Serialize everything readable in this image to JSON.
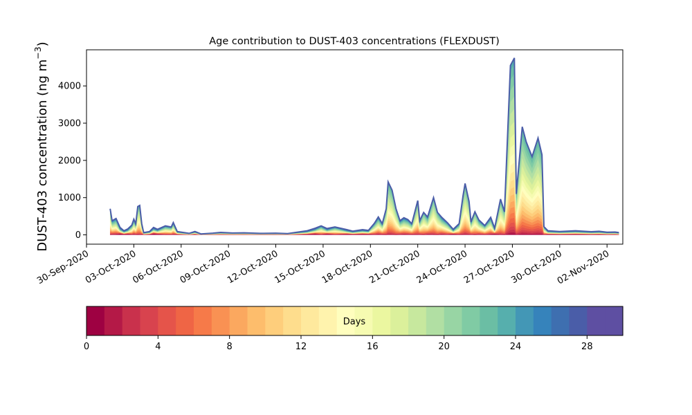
{
  "chart_data": {
    "type": "area",
    "stacked": true,
    "title": "Age contribution to DUST-403 concentrations (FLEXDUST)",
    "ylabel_main": "DUST-403 concentration (ng m",
    "ylabel_sup": "−3",
    "ylabel_close": ")",
    "xlabel": "",
    "yticks": [
      0,
      1000,
      2000,
      3000,
      4000
    ],
    "ylim": [
      -250,
      4970
    ],
    "xlim": [
      "2020-09-30T00:00",
      "2020-11-03T00:00"
    ],
    "xticks": [
      "30-Sep-2020",
      "03-Oct-2020",
      "06-Oct-2020",
      "09-Oct-2020",
      "12-Oct-2020",
      "15-Oct-2020",
      "18-Oct-2020",
      "21-Oct-2020",
      "24-Oct-2020",
      "27-Oct-2020",
      "30-Oct-2020",
      "02-Nov-2020"
    ],
    "grid": false,
    "total": [
      [
        "2020-10-01T12:00",
        700
      ],
      [
        "2020-10-01T15:00",
        380
      ],
      [
        "2020-10-01T21:00",
        440
      ],
      [
        "2020-10-02T03:00",
        200
      ],
      [
        "2020-10-02T09:00",
        110
      ],
      [
        "2020-10-02T15:00",
        160
      ],
      [
        "2020-10-02T21:00",
        260
      ],
      [
        "2020-10-03T00:00",
        420
      ],
      [
        "2020-10-03T03:00",
        300
      ],
      [
        "2020-10-03T06:00",
        760
      ],
      [
        "2020-10-03T09:00",
        790
      ],
      [
        "2020-10-03T12:00",
        300
      ],
      [
        "2020-10-03T15:00",
        60
      ],
      [
        "2020-10-04T00:00",
        90
      ],
      [
        "2020-10-04T06:00",
        200
      ],
      [
        "2020-10-04T12:00",
        150
      ],
      [
        "2020-10-05T00:00",
        240
      ],
      [
        "2020-10-05T09:00",
        210
      ],
      [
        "2020-10-05T12:00",
        330
      ],
      [
        "2020-10-05T18:00",
        90
      ],
      [
        "2020-10-06T12:00",
        40
      ],
      [
        "2020-10-06T21:00",
        90
      ],
      [
        "2020-10-07T06:00",
        25
      ],
      [
        "2020-10-08T00:00",
        45
      ],
      [
        "2020-10-08T12:00",
        65
      ],
      [
        "2020-10-09T06:00",
        50
      ],
      [
        "2020-10-10T00:00",
        55
      ],
      [
        "2020-10-11T00:00",
        40
      ],
      [
        "2020-10-12T00:00",
        45
      ],
      [
        "2020-10-12T18:00",
        35
      ],
      [
        "2020-10-13T12:00",
        80
      ],
      [
        "2020-10-14T00:00",
        110
      ],
      [
        "2020-10-14T12:00",
        180
      ],
      [
        "2020-10-14T21:00",
        240
      ],
      [
        "2020-10-15T06:00",
        170
      ],
      [
        "2020-10-15T18:00",
        210
      ],
      [
        "2020-10-16T12:00",
        140
      ],
      [
        "2020-10-16T21:00",
        100
      ],
      [
        "2020-10-17T12:00",
        140
      ],
      [
        "2020-10-17T21:00",
        120
      ],
      [
        "2020-10-18T06:00",
        310
      ],
      [
        "2020-10-18T12:00",
        480
      ],
      [
        "2020-10-18T18:00",
        300
      ],
      [
        "2020-10-19T00:00",
        700
      ],
      [
        "2020-10-19T03:00",
        1420
      ],
      [
        "2020-10-19T09:00",
        1200
      ],
      [
        "2020-10-19T15:00",
        700
      ],
      [
        "2020-10-19T21:00",
        380
      ],
      [
        "2020-10-20T03:00",
        460
      ],
      [
        "2020-10-20T09:00",
        410
      ],
      [
        "2020-10-20T15:00",
        300
      ],
      [
        "2020-10-21T00:00",
        920
      ],
      [
        "2020-10-21T03:00",
        380
      ],
      [
        "2020-10-21T09:00",
        600
      ],
      [
        "2020-10-21T15:00",
        480
      ],
      [
        "2020-10-22T00:00",
        1000
      ],
      [
        "2020-10-22T06:00",
        600
      ],
      [
        "2020-10-22T12:00",
        480
      ],
      [
        "2020-10-22T21:00",
        330
      ],
      [
        "2020-10-23T06:00",
        150
      ],
      [
        "2020-10-23T15:00",
        300
      ],
      [
        "2020-10-23T21:00",
        1060
      ],
      [
        "2020-10-24T00:00",
        1380
      ],
      [
        "2020-10-24T06:00",
        900
      ],
      [
        "2020-10-24T09:00",
        350
      ],
      [
        "2020-10-24T15:00",
        620
      ],
      [
        "2020-10-24T21:00",
        400
      ],
      [
        "2020-10-25T06:00",
        250
      ],
      [
        "2020-10-25T15:00",
        470
      ],
      [
        "2020-10-25T21:00",
        180
      ],
      [
        "2020-10-26T06:00",
        960
      ],
      [
        "2020-10-26T12:00",
        620
      ],
      [
        "2020-10-26T21:00",
        4550
      ],
      [
        "2020-10-27T03:00",
        4750
      ],
      [
        "2020-10-27T06:00",
        1100
      ],
      [
        "2020-10-27T15:00",
        2900
      ],
      [
        "2020-10-27T21:00",
        2500
      ],
      [
        "2020-10-28T06:00",
        2100
      ],
      [
        "2020-10-28T15:00",
        2600
      ],
      [
        "2020-10-28T21:00",
        2150
      ],
      [
        "2020-10-29T00:00",
        220
      ],
      [
        "2020-10-29T06:00",
        110
      ],
      [
        "2020-10-30T00:00",
        90
      ],
      [
        "2020-10-31T00:00",
        110
      ],
      [
        "2020-11-01T00:00",
        85
      ],
      [
        "2020-11-01T12:00",
        95
      ],
      [
        "2020-11-02T00:00",
        70
      ],
      [
        "2020-11-02T12:00",
        75
      ],
      [
        "2020-11-02T18:00",
        60
      ]
    ]
  },
  "colorbar": {
    "label": "Days",
    "range": [
      0,
      30
    ],
    "bins": 30,
    "ticks": [
      "0",
      "4",
      "8",
      "12",
      "16",
      "20",
      "24",
      "28"
    ],
    "colormap": "Spectral",
    "colors": [
      "#9e0142",
      "#b41947",
      "#c9314c",
      "#d8434e",
      "#e5544a",
      "#ef6545",
      "#f67a49",
      "#f99153",
      "#fba85f",
      "#fdbd6c",
      "#fece7c",
      "#fedd8d",
      "#fee99d",
      "#fff3ad",
      "#fffebe",
      "#f6fbb1",
      "#ebf7a0",
      "#dbf09b",
      "#c7e89e",
      "#b1dfa3",
      "#98d5a4",
      "#80cba4",
      "#6bbea4",
      "#56afad",
      "#4397b6",
      "#3683bb",
      "#3e6fb0",
      "#4a5da8",
      "#5e4fa2",
      "#5e4fa2"
    ]
  }
}
